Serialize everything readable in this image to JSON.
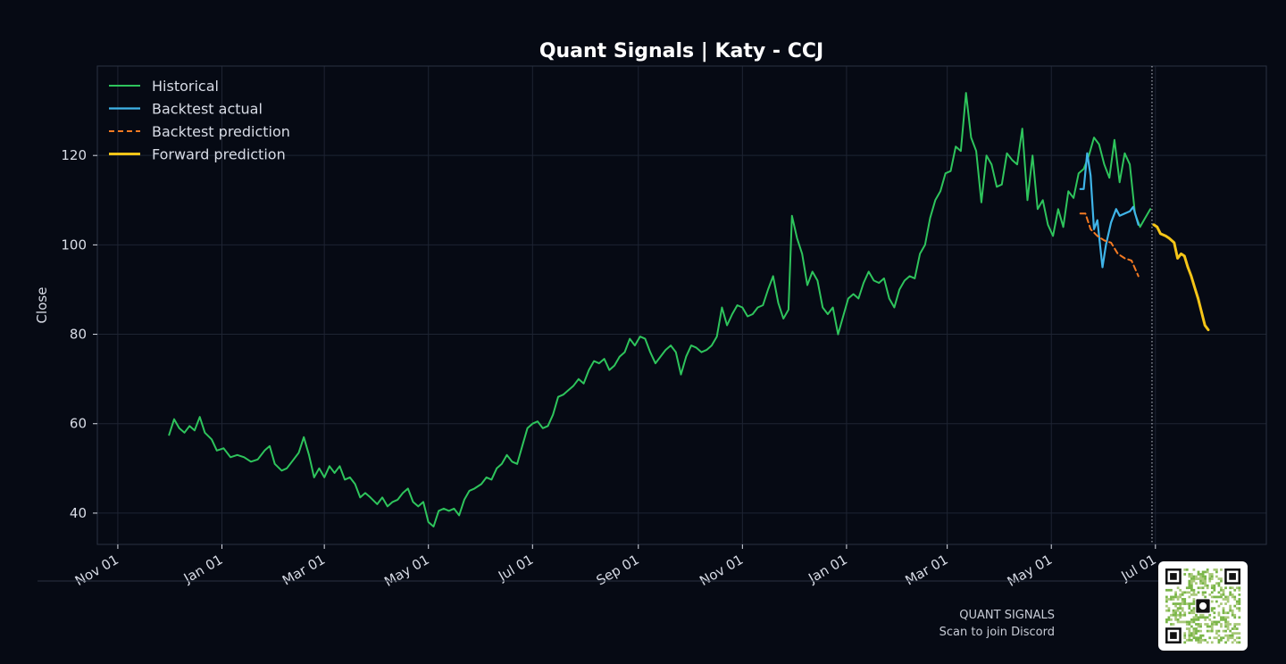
{
  "chart_data": {
    "type": "line",
    "title": "Quant Signals | Katy - CCJ",
    "xlabel": "",
    "ylabel": "Close",
    "ylim": [
      33,
      140
    ],
    "yticks": [
      40,
      60,
      80,
      100,
      120
    ],
    "xtick_labels": [
      "Nov 01",
      "Jan 01",
      "Mar 01",
      "May 01",
      "Jul 01",
      "Sep 01",
      "Nov 01",
      "Jan 01",
      "Mar 01",
      "May 01",
      "Jul 01"
    ],
    "xticks": [
      "2023-11-01",
      "2024-01-01",
      "2024-03-01",
      "2024-05-01",
      "2024-07-01",
      "2024-09-01",
      "2024-11-01",
      "2025-01-01",
      "2025-03-01",
      "2025-05-01",
      "2025-07-01"
    ],
    "xlim": [
      "2023-10-20",
      "2025-09-04"
    ],
    "grid": true,
    "legend_position": "top-left",
    "cutoff_date": "2025-06-29",
    "series": [
      {
        "name": "Historical",
        "color": "#2ec45c",
        "points": [
          [
            "2023-12-01",
            57.5
          ],
          [
            "2023-12-04",
            61.0
          ],
          [
            "2023-12-07",
            59.0
          ],
          [
            "2023-12-10",
            58.0
          ],
          [
            "2023-12-13",
            59.5
          ],
          [
            "2023-12-16",
            58.5
          ],
          [
            "2023-12-19",
            61.5
          ],
          [
            "2023-12-22",
            58.0
          ],
          [
            "2023-12-26",
            56.5
          ],
          [
            "2023-12-29",
            54.0
          ],
          [
            "2024-01-02",
            54.5
          ],
          [
            "2024-01-06",
            52.5
          ],
          [
            "2024-01-10",
            53.0
          ],
          [
            "2024-01-14",
            52.5
          ],
          [
            "2024-01-18",
            51.5
          ],
          [
            "2024-01-22",
            52.0
          ],
          [
            "2024-01-26",
            54.0
          ],
          [
            "2024-01-29",
            55.0
          ],
          [
            "2024-02-01",
            51.0
          ],
          [
            "2024-02-05",
            49.5
          ],
          [
            "2024-02-08",
            50.0
          ],
          [
            "2024-02-12",
            52.0
          ],
          [
            "2024-02-15",
            53.5
          ],
          [
            "2024-02-18",
            57.0
          ],
          [
            "2024-02-21",
            53.0
          ],
          [
            "2024-02-24",
            48.0
          ],
          [
            "2024-02-27",
            50.0
          ],
          [
            "2024-03-01",
            48.0
          ],
          [
            "2024-03-04",
            50.5
          ],
          [
            "2024-03-07",
            49.0
          ],
          [
            "2024-03-10",
            50.5
          ],
          [
            "2024-03-13",
            47.5
          ],
          [
            "2024-03-16",
            48.0
          ],
          [
            "2024-03-19",
            46.5
          ],
          [
            "2024-03-22",
            43.5
          ],
          [
            "2024-03-25",
            44.5
          ],
          [
            "2024-03-28",
            43.5
          ],
          [
            "2024-04-01",
            42.0
          ],
          [
            "2024-04-04",
            43.5
          ],
          [
            "2024-04-07",
            41.5
          ],
          [
            "2024-04-10",
            42.5
          ],
          [
            "2024-04-13",
            43.0
          ],
          [
            "2024-04-16",
            44.5
          ],
          [
            "2024-04-19",
            45.5
          ],
          [
            "2024-04-22",
            42.5
          ],
          [
            "2024-04-25",
            41.5
          ],
          [
            "2024-04-28",
            42.5
          ],
          [
            "2024-05-01",
            38.0
          ],
          [
            "2024-05-04",
            37.0
          ],
          [
            "2024-05-07",
            40.5
          ],
          [
            "2024-05-10",
            41.0
          ],
          [
            "2024-05-13",
            40.5
          ],
          [
            "2024-05-16",
            41.0
          ],
          [
            "2024-05-19",
            39.5
          ],
          [
            "2024-05-22",
            43.0
          ],
          [
            "2024-05-25",
            45.0
          ],
          [
            "2024-05-28",
            45.5
          ],
          [
            "2024-06-01",
            46.5
          ],
          [
            "2024-06-04",
            48.0
          ],
          [
            "2024-06-07",
            47.5
          ],
          [
            "2024-06-10",
            50.0
          ],
          [
            "2024-06-13",
            51.0
          ],
          [
            "2024-06-16",
            53.0
          ],
          [
            "2024-06-19",
            51.5
          ],
          [
            "2024-06-22",
            51.0
          ],
          [
            "2024-06-25",
            55.0
          ],
          [
            "2024-06-28",
            59.0
          ],
          [
            "2024-07-01",
            60.0
          ],
          [
            "2024-07-04",
            60.5
          ],
          [
            "2024-07-07",
            59.0
          ],
          [
            "2024-07-10",
            59.5
          ],
          [
            "2024-07-13",
            62.0
          ],
          [
            "2024-07-16",
            66.0
          ],
          [
            "2024-07-19",
            66.5
          ],
          [
            "2024-07-22",
            67.5
          ],
          [
            "2024-07-25",
            68.5
          ],
          [
            "2024-07-28",
            70.0
          ],
          [
            "2024-07-31",
            69.0
          ],
          [
            "2024-08-03",
            72.0
          ],
          [
            "2024-08-06",
            74.0
          ],
          [
            "2024-08-09",
            73.5
          ],
          [
            "2024-08-12",
            74.5
          ],
          [
            "2024-08-15",
            72.0
          ],
          [
            "2024-08-18",
            73.0
          ],
          [
            "2024-08-21",
            75.0
          ],
          [
            "2024-08-24",
            76.0
          ],
          [
            "2024-08-27",
            79.0
          ],
          [
            "2024-08-30",
            77.5
          ],
          [
            "2024-09-02",
            79.5
          ],
          [
            "2024-09-05",
            79.0
          ],
          [
            "2024-09-08",
            76.0
          ],
          [
            "2024-09-11",
            73.5
          ],
          [
            "2024-09-14",
            75.0
          ],
          [
            "2024-09-17",
            76.5
          ],
          [
            "2024-09-20",
            77.5
          ],
          [
            "2024-09-23",
            76.0
          ],
          [
            "2024-09-26",
            71.0
          ],
          [
            "2024-09-29",
            75.0
          ],
          [
            "2024-10-02",
            77.5
          ],
          [
            "2024-10-05",
            77.0
          ],
          [
            "2024-10-08",
            76.0
          ],
          [
            "2024-10-11",
            76.5
          ],
          [
            "2024-10-14",
            77.5
          ],
          [
            "2024-10-17",
            79.5
          ],
          [
            "2024-10-20",
            86.0
          ],
          [
            "2024-10-23",
            82.0
          ],
          [
            "2024-10-26",
            84.5
          ],
          [
            "2024-10-29",
            86.5
          ],
          [
            "2024-11-01",
            86.0
          ],
          [
            "2024-11-04",
            84.0
          ],
          [
            "2024-11-07",
            84.5
          ],
          [
            "2024-11-10",
            86.0
          ],
          [
            "2024-11-13",
            86.5
          ],
          [
            "2024-11-16",
            90.0
          ],
          [
            "2024-11-19",
            93.0
          ],
          [
            "2024-11-22",
            87.0
          ],
          [
            "2024-11-25",
            83.5
          ],
          [
            "2024-11-28",
            85.5
          ],
          [
            "2024-11-30",
            106.5
          ],
          [
            "2024-12-03",
            101.5
          ],
          [
            "2024-12-06",
            98.0
          ],
          [
            "2024-12-09",
            91.0
          ],
          [
            "2024-12-12",
            94.0
          ],
          [
            "2024-12-15",
            92.0
          ],
          [
            "2024-12-18",
            86.0
          ],
          [
            "2024-12-21",
            84.5
          ],
          [
            "2024-12-24",
            86.0
          ],
          [
            "2024-12-27",
            80.0
          ],
          [
            "2024-12-30",
            84.0
          ],
          [
            "2025-01-02",
            88.0
          ],
          [
            "2025-01-05",
            89.0
          ],
          [
            "2025-01-08",
            88.0
          ],
          [
            "2025-01-11",
            91.5
          ],
          [
            "2025-01-14",
            94.0
          ],
          [
            "2025-01-17",
            92.0
          ],
          [
            "2025-01-20",
            91.5
          ],
          [
            "2025-01-23",
            92.5
          ],
          [
            "2025-01-26",
            88.0
          ],
          [
            "2025-01-29",
            86.0
          ],
          [
            "2025-02-01",
            90.0
          ],
          [
            "2025-02-04",
            92.0
          ],
          [
            "2025-02-07",
            93.0
          ],
          [
            "2025-02-10",
            92.5
          ],
          [
            "2025-02-13",
            98.0
          ],
          [
            "2025-02-16",
            100.0
          ],
          [
            "2025-02-19",
            106.0
          ],
          [
            "2025-02-22",
            110.0
          ],
          [
            "2025-02-25",
            112.0
          ],
          [
            "2025-02-28",
            116.0
          ],
          [
            "2025-03-03",
            116.5
          ],
          [
            "2025-03-06",
            122.0
          ],
          [
            "2025-03-09",
            121.0
          ],
          [
            "2025-03-12",
            134.0
          ],
          [
            "2025-03-15",
            124.0
          ],
          [
            "2025-03-18",
            121.0
          ],
          [
            "2025-03-21",
            109.5
          ],
          [
            "2025-03-24",
            120.0
          ],
          [
            "2025-03-27",
            118.0
          ],
          [
            "2025-03-30",
            113.0
          ],
          [
            "2025-04-02",
            113.5
          ],
          [
            "2025-04-05",
            120.5
          ],
          [
            "2025-04-08",
            119.0
          ],
          [
            "2025-04-11",
            118.0
          ],
          [
            "2025-04-14",
            126.0
          ],
          [
            "2025-04-17",
            110.0
          ],
          [
            "2025-04-20",
            120.0
          ],
          [
            "2025-04-23",
            108.0
          ],
          [
            "2025-04-26",
            110.0
          ],
          [
            "2025-04-29",
            104.5
          ],
          [
            "2025-05-02",
            102.0
          ],
          [
            "2025-05-05",
            108.0
          ],
          [
            "2025-05-08",
            104.0
          ],
          [
            "2025-05-11",
            112.0
          ],
          [
            "2025-05-14",
            110.5
          ],
          [
            "2025-05-17",
            116.0
          ],
          [
            "2025-05-20",
            117.0
          ],
          [
            "2025-05-23",
            120.0
          ],
          [
            "2025-05-26",
            124.0
          ],
          [
            "2025-05-29",
            122.5
          ],
          [
            "2025-06-01",
            118.0
          ],
          [
            "2025-06-04",
            115.0
          ],
          [
            "2025-06-07",
            123.5
          ],
          [
            "2025-06-10",
            114.0
          ],
          [
            "2025-06-13",
            120.5
          ],
          [
            "2025-06-16",
            118.0
          ],
          [
            "2025-06-19",
            107.0
          ],
          [
            "2025-06-22",
            104.0
          ],
          [
            "2025-06-25",
            106.0
          ],
          [
            "2025-06-28",
            108.0
          ]
        ]
      },
      {
        "name": "Backtest actual",
        "color": "#3fb4e8",
        "points": [
          [
            "2025-05-18",
            112.5
          ],
          [
            "2025-05-20",
            112.5
          ],
          [
            "2025-05-22",
            120.5
          ],
          [
            "2025-05-24",
            115.5
          ],
          [
            "2025-05-26",
            103.5
          ],
          [
            "2025-05-28",
            105.5
          ],
          [
            "2025-05-31",
            95.0
          ],
          [
            "2025-06-02",
            100.0
          ],
          [
            "2025-06-05",
            105.0
          ],
          [
            "2025-06-08",
            108.0
          ],
          [
            "2025-06-10",
            106.5
          ],
          [
            "2025-06-13",
            107.0
          ],
          [
            "2025-06-16",
            107.5
          ],
          [
            "2025-06-18",
            108.5
          ],
          [
            "2025-06-21",
            104.5
          ]
        ]
      },
      {
        "name": "Backtest prediction",
        "color": "#f47a22",
        "points": [
          [
            "2025-05-18",
            107.0
          ],
          [
            "2025-05-21",
            107.0
          ],
          [
            "2025-05-24",
            103.5
          ],
          [
            "2025-05-28",
            102.0
          ],
          [
            "2025-06-01",
            101.0
          ],
          [
            "2025-06-05",
            100.5
          ],
          [
            "2025-06-09",
            98.0
          ],
          [
            "2025-06-13",
            97.0
          ],
          [
            "2025-06-17",
            96.5
          ],
          [
            "2025-06-21",
            93.0
          ]
        ]
      },
      {
        "name": "Forward prediction",
        "color": "#f5c518",
        "points": [
          [
            "2025-06-30",
            104.5
          ],
          [
            "2025-07-02",
            104.0
          ],
          [
            "2025-07-04",
            102.5
          ],
          [
            "2025-07-07",
            102.0
          ],
          [
            "2025-07-09",
            101.5
          ],
          [
            "2025-07-12",
            100.5
          ],
          [
            "2025-07-14",
            97.0
          ],
          [
            "2025-07-16",
            98.0
          ],
          [
            "2025-07-18",
            97.5
          ],
          [
            "2025-07-20",
            95.0
          ],
          [
            "2025-07-22",
            93.0
          ],
          [
            "2025-07-24",
            90.5
          ],
          [
            "2025-07-26",
            88.0
          ],
          [
            "2025-07-28",
            85.0
          ],
          [
            "2025-07-30",
            82.0
          ],
          [
            "2025-08-01",
            81.0
          ]
        ]
      }
    ]
  },
  "footer": {
    "brand": "QUANT SIGNALS",
    "caption": "Scan to join Discord"
  },
  "colors": {
    "background": "#060a14",
    "grid": "#1e2433",
    "text": "#d8dce6",
    "title": "#ffffff"
  }
}
